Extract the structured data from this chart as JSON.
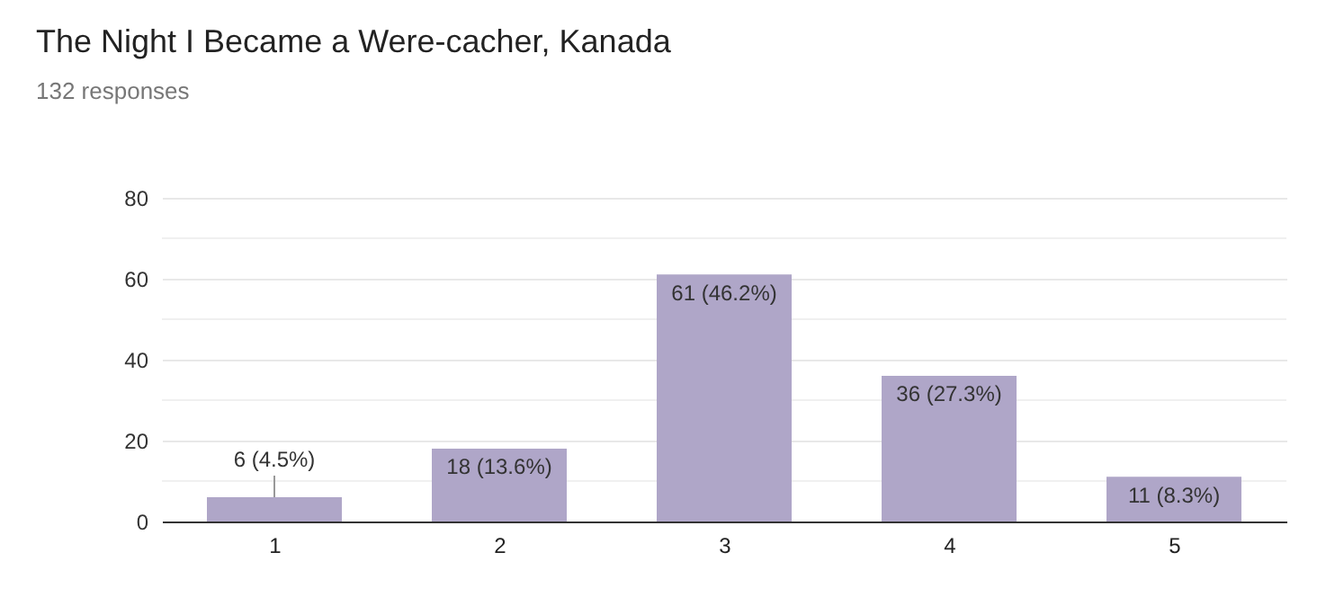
{
  "chart_data": {
    "type": "bar",
    "title": "The Night I Became a Were-cacher, Kanada",
    "subtitle": "132 responses",
    "categories": [
      "1",
      "2",
      "3",
      "4",
      "5"
    ],
    "values": [
      6,
      18,
      61,
      36,
      11
    ],
    "value_labels": [
      "6 (4.5%)",
      "18 (13.6%)",
      "61 (46.2%)",
      "36 (27.3%)",
      "11 (8.3%)"
    ],
    "color": "#afa6c8",
    "ylim": [
      0,
      80
    ],
    "yticks": [
      0,
      {
        "value": 10,
        "label": null
      },
      20,
      {
        "value": 30,
        "label": null
      },
      40,
      {
        "value": 50,
        "label": null
      },
      60,
      {
        "value": 70,
        "label": null
      },
      80
    ],
    "grid": true
  }
}
